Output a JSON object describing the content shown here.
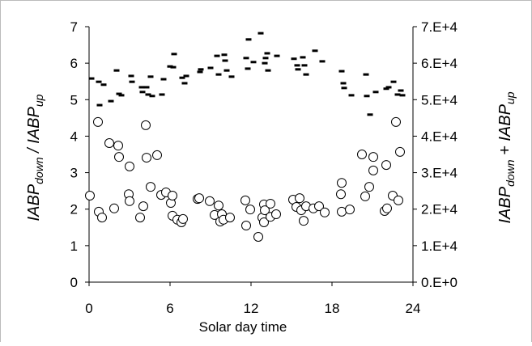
{
  "chart_data": {
    "type": "scatter",
    "xlabel": "Solar day time",
    "ylabel_parts": [
      "IABP",
      "down",
      " / ",
      "IABP",
      "up"
    ],
    "y2label_parts": [
      "IABP",
      "down",
      " + ",
      "IABP",
      "up"
    ],
    "xlim": [
      0,
      24
    ],
    "xticks": [
      0,
      6,
      12,
      18,
      24
    ],
    "ylim": [
      0,
      7
    ],
    "yticks": [
      0,
      1,
      2,
      3,
      4,
      5,
      6,
      7
    ],
    "y2lim": [
      0,
      70000
    ],
    "y2ticks": [
      {
        "value": 0,
        "label": "0.E+0"
      },
      {
        "value": 10000,
        "label": "1.E+4"
      },
      {
        "value": 20000,
        "label": "2.E+4"
      },
      {
        "value": 30000,
        "label": "3.E+4"
      },
      {
        "value": 40000,
        "label": "4.E+4"
      },
      {
        "value": 50000,
        "label": "5.E+4"
      },
      {
        "value": 60000,
        "label": "6.E+4"
      },
      {
        "value": 70000,
        "label": "7.E+4"
      }
    ],
    "grid": false,
    "series": [
      {
        "marker": "circle",
        "color": "#000000",
        "x": [
          0.06,
          0.66,
          0.72,
          0.96,
          1.5,
          1.86,
          2.16,
          2.22,
          2.94,
          3.0,
          3.0,
          3.78,
          4.02,
          4.2,
          4.26,
          4.56,
          5.04,
          5.34,
          5.7,
          6.06,
          6.18,
          6.18,
          6.54,
          6.84,
          6.96,
          8.04,
          8.16,
          8.94,
          9.3,
          9.6,
          9.72,
          9.84,
          9.96,
          10.44,
          11.58,
          11.64,
          11.94,
          12.54,
          12.84,
          12.96,
          12.96,
          13.02,
          13.44,
          13.44,
          13.86,
          15.12,
          15.36,
          15.6,
          15.72,
          15.9,
          16.08,
          16.62,
          17.04,
          17.46,
          18.72,
          18.66,
          18.72,
          19.32,
          20.22,
          20.46,
          20.76,
          21.06,
          21.06,
          21.9,
          22.08,
          22.02,
          22.5,
          22.74,
          22.92,
          23.04
        ],
        "values": [
          2.37,
          4.39,
          1.93,
          1.77,
          3.81,
          2.02,
          3.74,
          3.43,
          2.41,
          3.17,
          2.22,
          1.77,
          2.08,
          4.3,
          3.41,
          2.61,
          3.48,
          2.39,
          2.46,
          2.17,
          2.37,
          1.82,
          1.71,
          1.64,
          1.73,
          2.28,
          2.3,
          2.22,
          1.84,
          2.1,
          1.66,
          1.86,
          1.71,
          1.77,
          2.24,
          1.55,
          1.99,
          1.24,
          1.77,
          2.13,
          1.64,
          1.97,
          1.79,
          2.15,
          1.86,
          2.26,
          2.06,
          2.3,
          1.97,
          1.68,
          2.08,
          2.02,
          2.08,
          1.91,
          2.72,
          2.41,
          1.93,
          1.99,
          3.5,
          2.35,
          2.61,
          3.43,
          3.06,
          1.95,
          2.02,
          3.21,
          2.37,
          4.39,
          2.24,
          3.57
        ]
      },
      {
        "marker": "dash",
        "color": "#000000",
        "axis": "y2",
        "x": [
          0.18,
          0.72,
          0.78,
          1.08,
          1.62,
          2.04,
          2.22,
          2.4,
          3.12,
          3.18,
          3.9,
          3.96,
          4.26,
          4.38,
          4.56,
          4.68,
          5.4,
          5.52,
          6.0,
          6.24,
          6.3,
          6.9,
          7.08,
          7.2,
          8.22,
          8.28,
          9.0,
          9.48,
          9.6,
          10.02,
          10.08,
          10.2,
          10.56,
          11.64,
          11.82,
          11.76,
          12.18,
          12.72,
          13.02,
          13.08,
          13.2,
          13.26,
          13.92,
          15.18,
          15.42,
          15.48,
          15.84,
          16.08,
          15.96,
          16.74,
          17.28,
          18.72,
          18.84,
          18.9,
          19.44,
          20.52,
          20.58,
          20.82,
          21.24,
          22.02,
          22.2,
          22.56,
          22.86,
          23.1,
          23.22
        ],
        "values": [
          55800,
          54900,
          48500,
          54100,
          49600,
          58000,
          51600,
          51200,
          56500,
          54900,
          53400,
          52100,
          53400,
          51400,
          56300,
          51000,
          51400,
          55600,
          59100,
          58900,
          62500,
          56000,
          54500,
          56500,
          57600,
          58300,
          58700,
          62000,
          56900,
          62300,
          60700,
          58000,
          56300,
          61400,
          66500,
          58500,
          60300,
          68200,
          60000,
          61400,
          62700,
          58000,
          62000,
          61200,
          59400,
          58300,
          61600,
          56900,
          59400,
          63400,
          60500,
          57800,
          54500,
          53200,
          51200,
          56900,
          51000,
          45900,
          52100,
          53000,
          53400,
          54900,
          51400,
          52500,
          51200
        ]
      }
    ]
  }
}
